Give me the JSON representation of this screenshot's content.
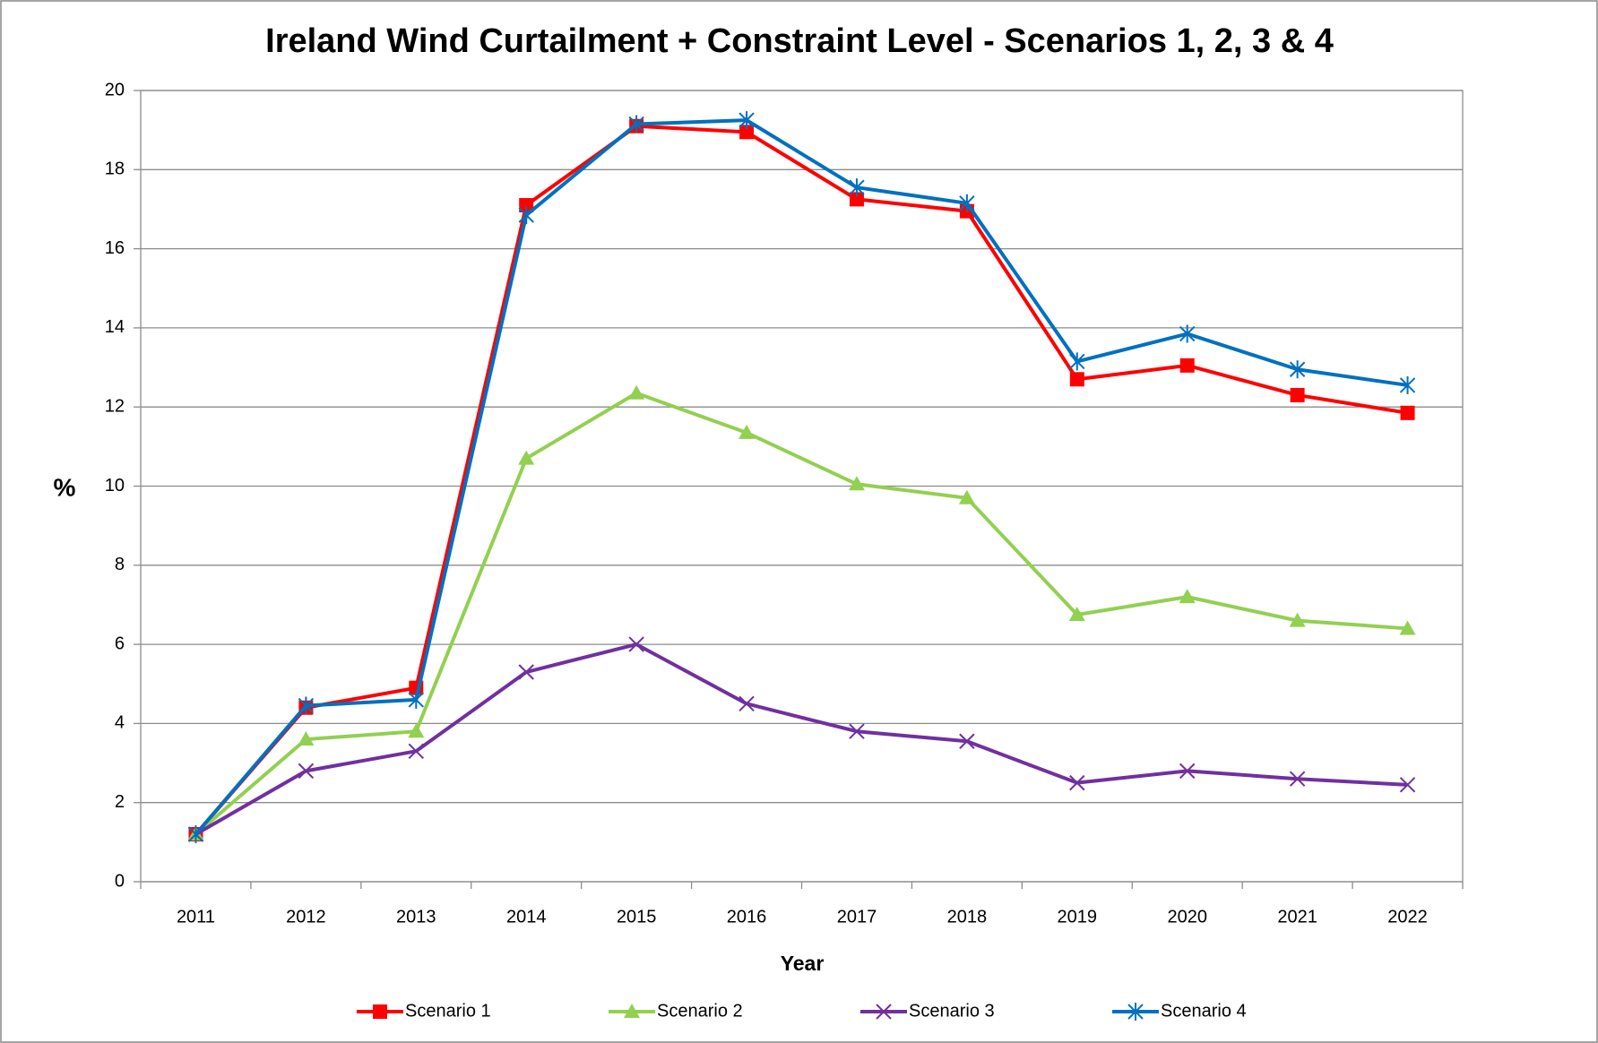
{
  "chart_data": {
    "type": "line",
    "title": "Ireland Wind Curtailment + Constraint Level  - Scenarios 1, 2, 3 & 4",
    "x_label": "Year",
    "y_label": "%",
    "categories": [
      "2011",
      "2012",
      "2013",
      "2014",
      "2015",
      "2016",
      "2017",
      "2018",
      "2019",
      "2020",
      "2021",
      "2022"
    ],
    "series": [
      {
        "name": "Scenario 1",
        "color": "#ff0000",
        "marker": "square",
        "values": [
          1.2,
          4.4,
          4.9,
          17.1,
          19.1,
          18.95,
          17.25,
          16.95,
          12.7,
          13.05,
          12.3,
          11.85
        ]
      },
      {
        "name": "Scenario 2",
        "color": "#92d050",
        "marker": "triangle",
        "values": [
          1.2,
          3.6,
          3.8,
          10.7,
          12.35,
          11.35,
          10.05,
          9.7,
          6.75,
          7.2,
          6.6,
          6.4
        ]
      },
      {
        "name": "Scenario 3",
        "color": "#7030a0",
        "marker": "x",
        "values": [
          1.2,
          2.8,
          3.3,
          5.3,
          6.0,
          4.5,
          3.8,
          3.55,
          2.5,
          2.8,
          2.6,
          2.45
        ]
      },
      {
        "name": "Scenario 4",
        "color": "#0070c0",
        "marker": "star",
        "values": [
          1.2,
          4.45,
          4.6,
          16.85,
          19.15,
          19.25,
          17.55,
          17.15,
          13.15,
          13.85,
          12.95,
          12.55
        ]
      }
    ],
    "ylim": [
      0,
      20
    ],
    "yticks": [
      0,
      2,
      4,
      6,
      8,
      10,
      12,
      14,
      16,
      18,
      20
    ],
    "grid": true,
    "legend": "bottom"
  }
}
